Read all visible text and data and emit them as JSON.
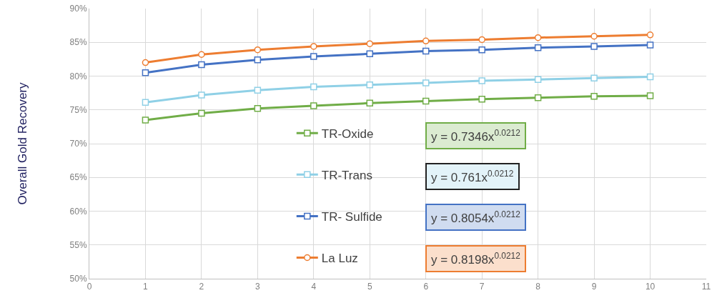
{
  "chart_data": {
    "type": "line",
    "ylabel": "Overall Gold Recovery",
    "x": [
      1,
      2,
      3,
      4,
      5,
      6,
      7,
      8,
      9,
      10
    ],
    "series": [
      {
        "name": "TR-Oxide",
        "color": "#70ad47",
        "marker": "square",
        "values": [
          73.5,
          74.5,
          75.2,
          75.6,
          76.0,
          76.3,
          76.6,
          76.8,
          77.0,
          77.1
        ]
      },
      {
        "name": "TR-Trans",
        "color": "#8fd0e6",
        "marker": "square",
        "values": [
          76.1,
          77.2,
          77.9,
          78.4,
          78.7,
          79.0,
          79.3,
          79.5,
          79.7,
          79.9
        ]
      },
      {
        "name": "TR- Sulfide",
        "color": "#4472c4",
        "marker": "square",
        "values": [
          80.5,
          81.7,
          82.4,
          82.9,
          83.3,
          83.7,
          83.9,
          84.2,
          84.4,
          84.6
        ]
      },
      {
        "name": "La Luz",
        "color": "#ed7d31",
        "marker": "circle",
        "values": [
          82.0,
          83.2,
          83.9,
          84.4,
          84.8,
          85.2,
          85.4,
          85.7,
          85.9,
          86.1
        ]
      }
    ],
    "annotations": [
      "y = 0.7346x$^{0.0212}$",
      "y = 0.761x$^{0.0212}$",
      "y = 0.8054x$^{0.0212}$",
      "y = 0.8198x$^{0.0212}$"
    ],
    "xlim": [
      0,
      11
    ],
    "xticks": [
      0,
      1,
      2,
      3,
      4,
      5,
      6,
      7,
      8,
      9,
      10,
      11
    ],
    "ylim": [
      50,
      90
    ],
    "yticks": [
      {
        "value": 50,
        "label": "50%"
      },
      {
        "value": 55,
        "label": "55%"
      },
      {
        "value": 60,
        "label": "60%"
      },
      {
        "value": 65,
        "label": "65%"
      },
      {
        "value": 70,
        "label": "70%"
      },
      {
        "value": 75,
        "label": "75%"
      },
      {
        "value": 80,
        "label": "80%"
      },
      {
        "value": 85,
        "label": "85%"
      },
      {
        "value": 90,
        "label": "90%"
      }
    ],
    "grid": true,
    "legend": "bottom",
    "line_style": "solid"
  }
}
